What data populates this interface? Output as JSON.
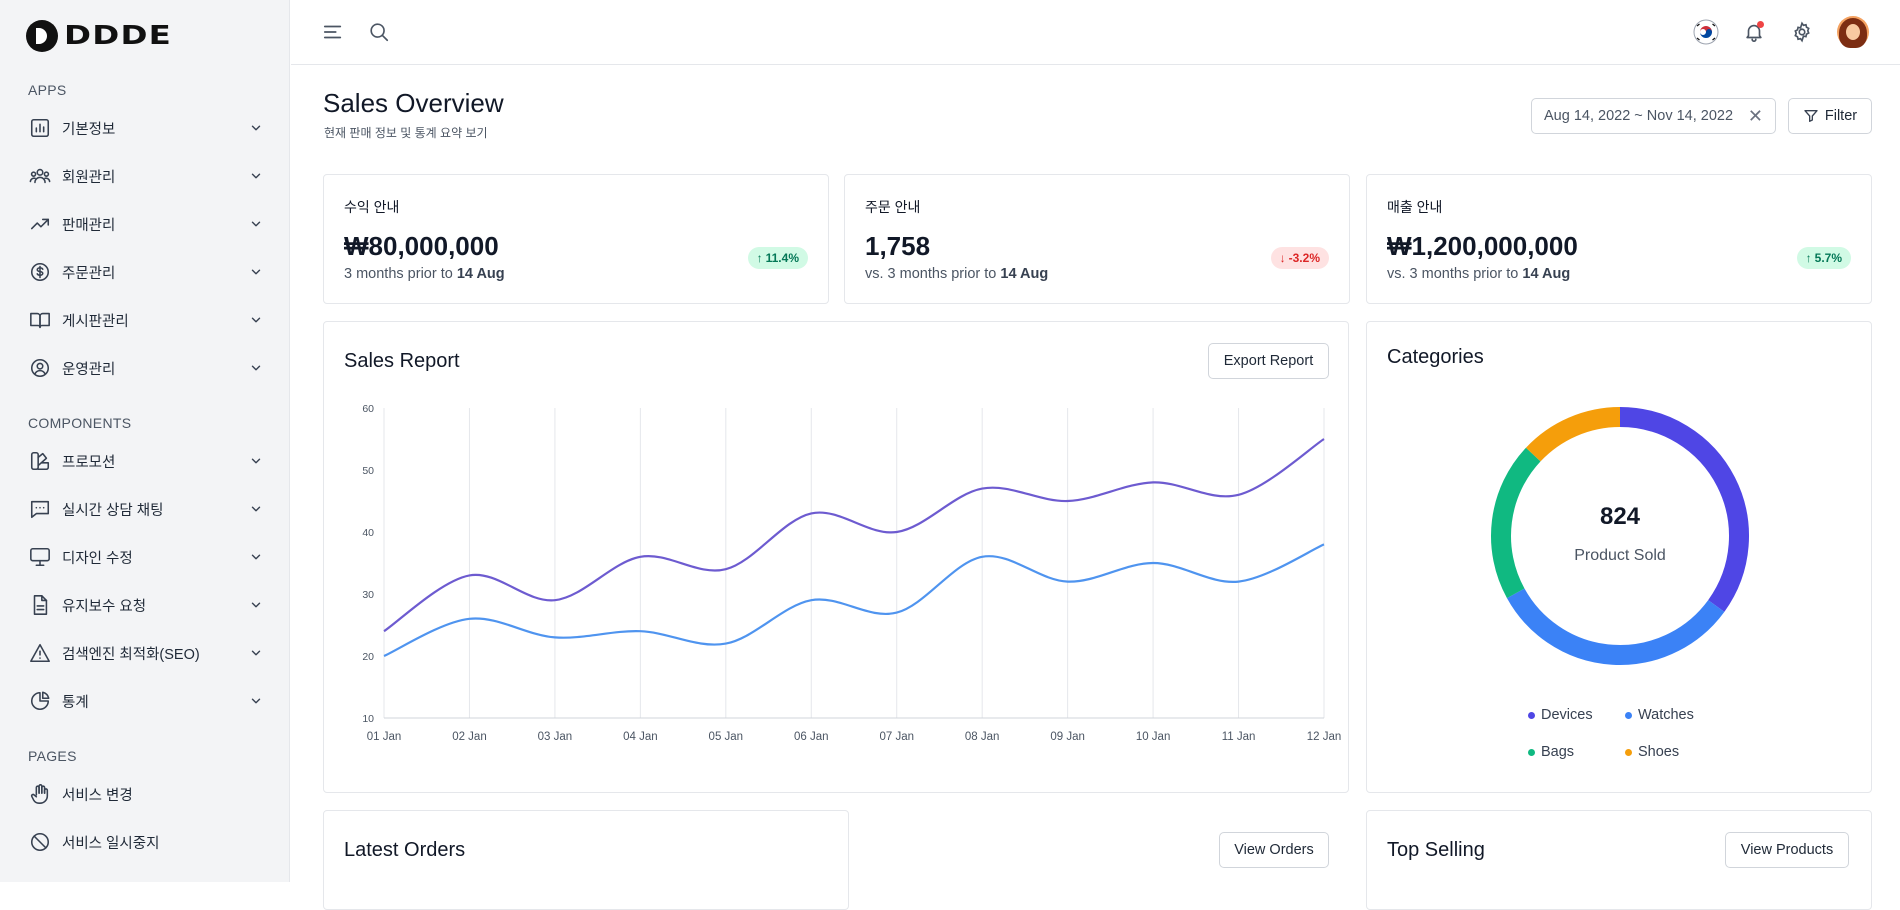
{
  "brand": {
    "name": "DDDE"
  },
  "sidebar": {
    "sections": [
      {
        "label": "APPS",
        "items": [
          {
            "label": "기본정보",
            "icon": "bar-chart-icon"
          },
          {
            "label": "회원관리",
            "icon": "users-icon"
          },
          {
            "label": "판매관리",
            "icon": "trending-up-icon"
          },
          {
            "label": "주문관리",
            "icon": "dollar-circle-icon"
          },
          {
            "label": "게시판관리",
            "icon": "book-open-icon"
          },
          {
            "label": "운영관리",
            "icon": "user-circle-icon"
          }
        ]
      },
      {
        "label": "COMPONENTS",
        "items": [
          {
            "label": "프로모션",
            "icon": "swatch-icon"
          },
          {
            "label": "실시간 상담 채팅",
            "icon": "chat-icon"
          },
          {
            "label": "디자인 수정",
            "icon": "monitor-icon"
          },
          {
            "label": "유지보수 요청",
            "icon": "document-icon"
          },
          {
            "label": "검색엔진 최적화(SEO)",
            "icon": "warning-icon"
          },
          {
            "label": "통계",
            "icon": "pie-chart-icon"
          }
        ]
      },
      {
        "label": "PAGES",
        "items": [
          {
            "label": "서비스 변경",
            "icon": "hand-icon"
          },
          {
            "label": "서비스 일시중지",
            "icon": "ban-icon"
          }
        ]
      }
    ]
  },
  "header": {
    "title": "Sales Overview",
    "subtitle": "현재 판매 정보 및 통계 요약 보기",
    "date_range": "Aug 14, 2022 ~ Nov 14, 2022",
    "filter_label": "Filter"
  },
  "stats": [
    {
      "label": "수익 안내",
      "value": "₩80,000,000",
      "sub_prefix": "3 months prior to",
      "sub_bold": "14 Aug",
      "badge": "11.4%",
      "trend": "up"
    },
    {
      "label": "주문 안내",
      "value": "1,758",
      "sub_prefix": "vs. 3 months prior to",
      "sub_bold": "14 Aug",
      "badge": "-3.2%",
      "trend": "down"
    },
    {
      "label": "매출 안내",
      "value": "₩1,200,000,000",
      "sub_prefix": "vs. 3 months prior to",
      "sub_bold": "14 Aug",
      "badge": "5.7%",
      "trend": "up"
    }
  ],
  "sales_report": {
    "title": "Sales Report",
    "export_label": "Export Report"
  },
  "categories": {
    "title": "Categories",
    "center_value": "824",
    "center_label": "Product Sold",
    "legend": [
      {
        "name": "Devices",
        "color": "#4f46e5"
      },
      {
        "name": "Watches",
        "color": "#3b82f6"
      },
      {
        "name": "Bags",
        "color": "#10b981"
      },
      {
        "name": "Shoes",
        "color": "#f59e0b"
      }
    ]
  },
  "latest_orders": {
    "title": "Latest Orders",
    "button": "View Orders"
  },
  "top_selling": {
    "title": "Top Selling",
    "button": "View Products"
  },
  "chart_data": [
    {
      "type": "line",
      "x": [
        "01 Jan",
        "02 Jan",
        "03 Jan",
        "04 Jan",
        "05 Jan",
        "06 Jan",
        "07 Jan",
        "08 Jan",
        "09 Jan",
        "10 Jan",
        "11 Jan",
        "12 Jan"
      ],
      "series": [
        {
          "values": [
            24,
            33,
            29,
            36,
            34,
            43,
            40,
            47,
            45,
            48,
            46,
            55
          ],
          "color": "#6d5bd0"
        },
        {
          "values": [
            20,
            26,
            23,
            24,
            22,
            29,
            27,
            36,
            32,
            35,
            32,
            38
          ],
          "color": "#4f94ef"
        }
      ],
      "yticks": [
        10,
        20,
        30,
        40,
        50,
        60
      ],
      "ylim": [
        10,
        60
      ],
      "grid": "vertical"
    },
    {
      "type": "pie",
      "donut": true,
      "categories": [
        "Devices",
        "Watches",
        "Bags",
        "Shoes"
      ],
      "values": [
        35,
        32,
        20,
        13
      ],
      "colors": [
        "#4f46e5",
        "#3b82f6",
        "#10b981",
        "#f59e0b"
      ]
    }
  ]
}
